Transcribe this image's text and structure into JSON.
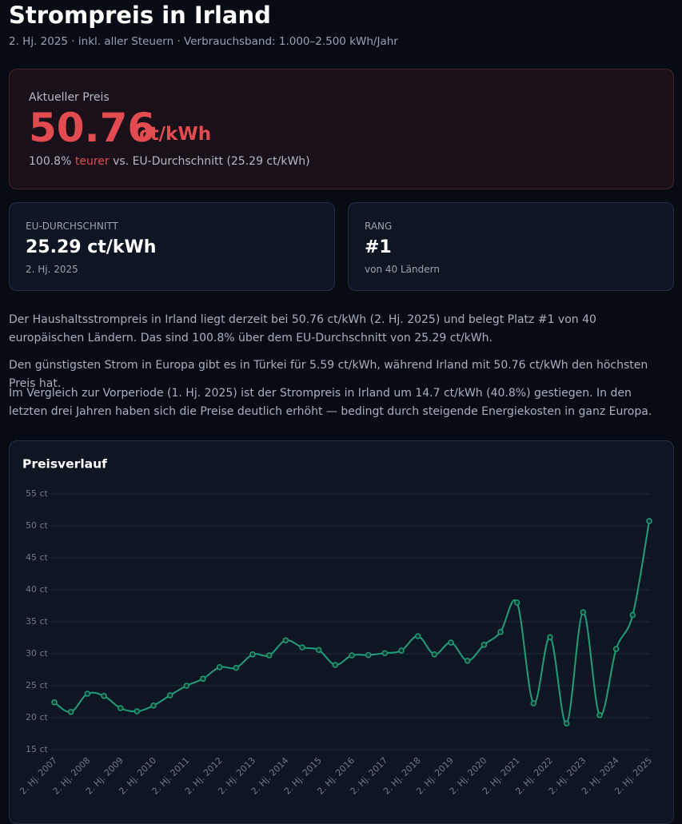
{
  "header": {
    "title": "Strompreis in Irland",
    "subtitle": "2. Hj. 2025 · inkl. aller Steuern · Verbrauchsband: 1.000–2.500 kWh/Jahr"
  },
  "current": {
    "label": "Aktueller Preis",
    "price": "50.76",
    "unit": "ct/kWh",
    "note_before": "100.8% ",
    "note_highlight": "teurer",
    "note_after": " vs. EU-Durchschnitt (25.29 ct/kWh)"
  },
  "stats": [
    {
      "label": "EU-DURCHSCHNITT",
      "value": "25.29 ct/kWh",
      "sub": "2. Hj. 2025"
    },
    {
      "label": "RANG",
      "value": "#1",
      "sub": "von 40 Ländern"
    }
  ],
  "paragraphs": [
    "Der Haushaltsstrompreis in Irland liegt derzeit bei 50.76 ct/kWh (2. Hj. 2025) und belegt Platz #1 von 40 europäischen Ländern. Das sind 100.8% über dem EU-Durchschnitt von 25.29 ct/kWh.",
    "Den günstigsten Strom in Europa gibt es in Türkei für 5.59 ct/kWh, während Irland mit 50.76 ct/kWh den höchsten Preis hat.",
    "Im Vergleich zur Vorperiode (1. Hj. 2025) ist der Strompreis in Irland um 14.7 ct/kWh (40.8%) gestiegen. In den letzten drei Jahren haben sich die Preise deutlich erhöht — bedingt durch steigende Energiekosten in ganz Europa."
  ],
  "chart_data": {
    "type": "line",
    "title": "Preisverlauf",
    "categories": [
      "2. Hj. 2007",
      null,
      "2. Hj. 2008",
      null,
      "2. Hj. 2009",
      null,
      "2. Hj. 2010",
      null,
      "2. Hj. 2011",
      null,
      "2. Hj. 2012",
      null,
      "2. Hj. 2013",
      null,
      "2. Hj. 2014",
      null,
      "2. Hj. 2015",
      null,
      "2. Hj. 2016",
      null,
      "2. Hj. 2017",
      null,
      "2. Hj. 2018",
      null,
      "2. Hj. 2019",
      null,
      "2. Hj. 2020",
      null,
      "2. Hj. 2021",
      null,
      "2. Hj. 2022",
      null,
      "2. Hj. 2023",
      null,
      "2. Hj. 2024",
      null,
      "2. Hj. 2025"
    ],
    "values": [
      22.4,
      20.9,
      23.75,
      23.4,
      21.5,
      21.0,
      21.9,
      23.5,
      25.0,
      26.1,
      27.9,
      27.8,
      29.9,
      29.75,
      32.1,
      31.0,
      30.6,
      28.25,
      29.75,
      29.8,
      30.1,
      30.5,
      32.75,
      29.9,
      31.75,
      28.9,
      31.4,
      33.4,
      38.0,
      22.25,
      32.6,
      19.1,
      36.5,
      20.4,
      30.75,
      36.06,
      50.76
    ],
    "color": "#1f9e78",
    "ylim": [
      15,
      55
    ],
    "yticks": [
      {
        "value": 15,
        "label": "15 ct"
      },
      {
        "value": 20,
        "label": "20 ct"
      },
      {
        "value": 25,
        "label": "25 ct"
      },
      {
        "value": 30,
        "label": "30 ct"
      },
      {
        "value": 35,
        "label": "35 ct"
      },
      {
        "value": 40,
        "label": "40 ct"
      },
      {
        "value": 45,
        "label": "45 ct"
      },
      {
        "value": 50,
        "label": "50 ct"
      },
      {
        "value": 55,
        "label": "55 ct"
      }
    ],
    "grid": true
  }
}
